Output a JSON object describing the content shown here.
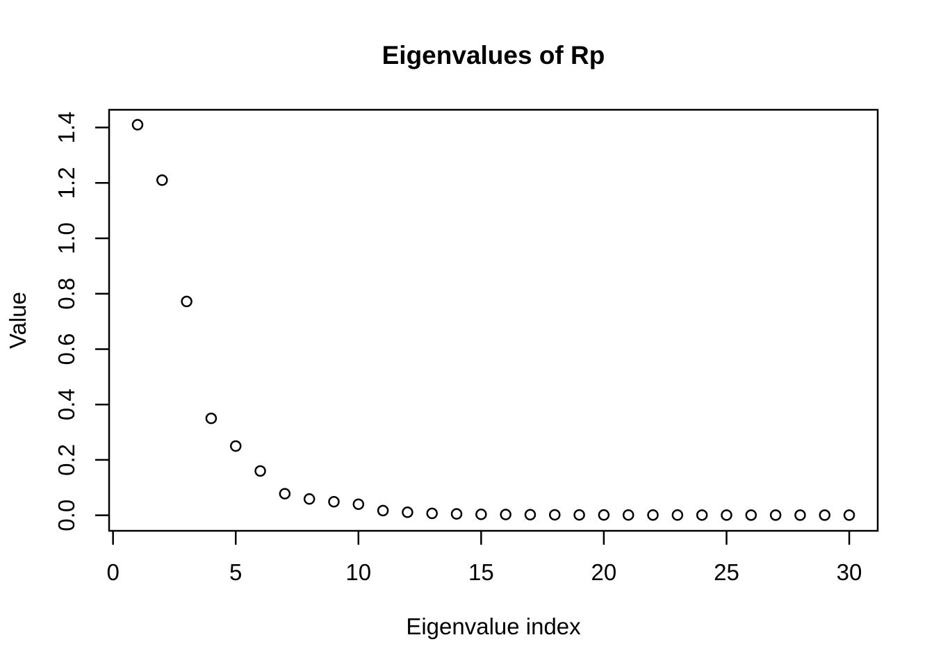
{
  "figure": {
    "background": "#ffffff",
    "foreground": "#000000"
  },
  "chart_data": {
    "type": "scatter",
    "title": "Eigenvalues of Rp",
    "xlabel": "Eigenvalue index",
    "ylabel": "Value",
    "marker": "open-circle",
    "grid": false,
    "legend": null,
    "point_color": "#000000",
    "axis_color": "#000000",
    "xlim": [
      -0.16,
      31.16
    ],
    "ylim": [
      -0.056,
      1.464
    ],
    "x_ticks": [
      0,
      5,
      10,
      15,
      20,
      25,
      30
    ],
    "x_tick_labels": [
      "0",
      "5",
      "10",
      "15",
      "20",
      "25",
      "30"
    ],
    "y_ticks": [
      0.0,
      0.2,
      0.4,
      0.6,
      0.8,
      1.0,
      1.2,
      1.4
    ],
    "y_tick_labels": [
      "0.0",
      "0.2",
      "0.4",
      "0.6",
      "0.8",
      "1.0",
      "1.2",
      "1.4"
    ],
    "x": [
      1,
      2,
      3,
      4,
      5,
      6,
      7,
      8,
      9,
      10,
      11,
      12,
      13,
      14,
      15,
      16,
      17,
      18,
      19,
      20,
      21,
      22,
      23,
      24,
      25,
      26,
      27,
      28,
      29,
      30
    ],
    "y": [
      1.41,
      1.21,
      0.772,
      0.35,
      0.25,
      0.16,
      0.078,
      0.059,
      0.049,
      0.04,
      0.017,
      0.011,
      0.007,
      0.005,
      0.0035,
      0.0028,
      0.0022,
      0.0018,
      0.0015,
      0.0013,
      0.0012,
      0.0011,
      0.001,
      0.0009,
      0.0009,
      0.0008,
      0.0008,
      0.0007,
      0.0007,
      0.0006
    ]
  }
}
